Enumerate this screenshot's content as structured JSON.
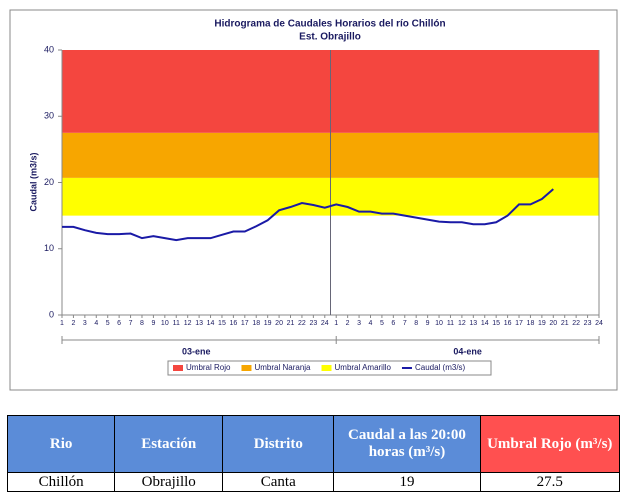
{
  "chart_data": {
    "type": "line",
    "title": "Hidrograma de Caudales Horarios del río Chillón",
    "subtitle": "Est. Obrajillo",
    "y_label": "Caudal  (m3/s)",
    "categories": [
      "1",
      "2",
      "3",
      "4",
      "5",
      "6",
      "7",
      "8",
      "9",
      "10",
      "11",
      "12",
      "13",
      "14",
      "15",
      "16",
      "17",
      "18",
      "19",
      "20",
      "21",
      "22",
      "23",
      "24",
      "1",
      "2",
      "3",
      "4",
      "5",
      "6",
      "7",
      "8",
      "9",
      "10",
      "11",
      "12",
      "13",
      "14",
      "15",
      "16",
      "17",
      "18",
      "19",
      "20",
      "21",
      "22",
      "23",
      "24"
    ],
    "groups": [
      "03-ene",
      "04-ene"
    ],
    "series": [
      {
        "name": "Caudal (m3/s)",
        "color": "#1a1aa6",
        "values": [
          13.3,
          13.3,
          12.8,
          12.4,
          12.2,
          12.2,
          12.3,
          11.6,
          11.9,
          11.6,
          11.3,
          11.6,
          11.6,
          11.6,
          12.1,
          12.6,
          12.6,
          13.4,
          14.3,
          15.8,
          16.3,
          16.9,
          16.6,
          16.2,
          16.7,
          16.3,
          15.6,
          15.6,
          15.3,
          15.3,
          15.0,
          14.7,
          14.4,
          14.1,
          14.0,
          14.0,
          13.7,
          13.7,
          14.0,
          15.0,
          16.7,
          16.7,
          17.5,
          19,
          null,
          null,
          null,
          null
        ]
      }
    ],
    "thresholds": [
      {
        "name": "Umbral Rojo",
        "color": "#f4463f",
        "value": 27.5
      },
      {
        "name": "Umbral Naranja",
        "color": "#f7a600",
        "value": 20.7
      },
      {
        "name": "Umbral Amarillo",
        "color": "#ffff00",
        "value": 15
      }
    ],
    "ylim": [
      0,
      40
    ],
    "yticks": [
      0,
      10,
      20,
      30,
      40
    ]
  },
  "table": {
    "header": [
      "Rio",
      "Estación",
      "Distrito",
      "Caudal a las 20:00 horas (m³/s)",
      "Umbral Rojo (m³/s)"
    ],
    "rows": [
      [
        "Chillón",
        "Obrajillo",
        "Canta",
        "19",
        "27.5"
      ]
    ]
  }
}
